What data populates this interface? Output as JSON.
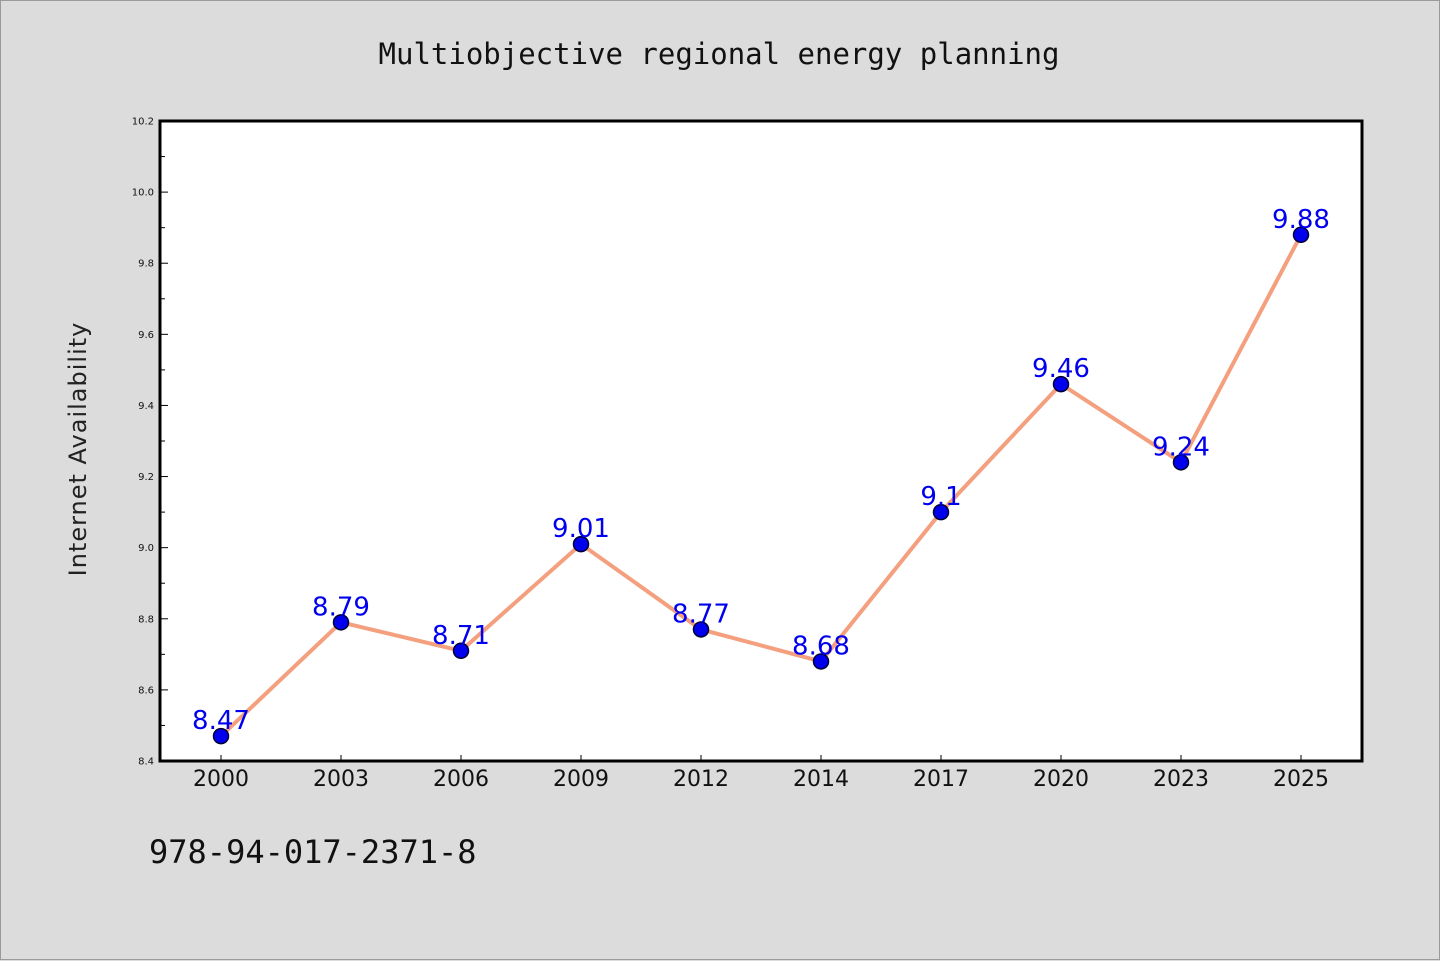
{
  "chart_data": {
    "type": "line",
    "title": "Multiobjective regional energy planning",
    "xlabel": "",
    "ylabel": "Internet Availability",
    "categories": [
      "2000",
      "2003",
      "2006",
      "2009",
      "2012",
      "2014",
      "2017",
      "2020",
      "2023",
      "2025"
    ],
    "series": [
      {
        "values": [
          8.47,
          8.79,
          8.71,
          9.01,
          8.77,
          8.68,
          9.1,
          9.46,
          9.24,
          9.88
        ],
        "data_labels": [
          "8.47",
          "8.79",
          "8.71",
          "9.01",
          "8.77",
          "8.68",
          "9.1",
          "9.46",
          "9.24",
          "9.88"
        ]
      }
    ],
    "ylim": [
      8.4,
      10.2
    ],
    "yticks": [
      "8.4",
      "8.6",
      "8.8",
      "9.0",
      "9.2",
      "9.4",
      "9.6",
      "9.8",
      "10.0",
      "10.2"
    ],
    "grid": false,
    "colors": {
      "line": "#f4a07e",
      "marker_fill": "#0000ee",
      "marker_edge": "#000033",
      "data_label": "#0000ee",
      "plot_background": "#ffffff",
      "figure_background": "#dcdcdc"
    }
  },
  "footer": {
    "isbn": "978-94-017-2371-8"
  }
}
